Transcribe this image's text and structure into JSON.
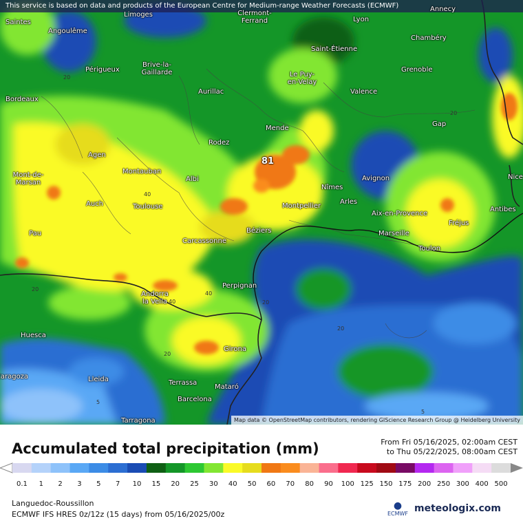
{
  "attribution_top": "This service is based on data and products of the European Centre for Medium-range Weather Forecasts (ECMWF)",
  "attribution_bottom": "Map data © OpenStreetMap contributors, rendering GIScience Research Group @ Heidelberg University",
  "title": "Accumulated total precipitation (mm)",
  "period": {
    "from": "From Fri 05/16/2025, 02:00am CEST",
    "to": "to Thu 05/22/2025, 08:00am CEST"
  },
  "region": "Languedoc-Roussillon",
  "model": "ECMWF IFS HRES 0z/12z (15 days) from 05/16/2025/00z",
  "logo": {
    "ecmwf": "ECMWF",
    "brand": "meteologix.com"
  },
  "scale": {
    "labels": [
      "0.1",
      "1",
      "2",
      "3",
      "5",
      "7",
      "10",
      "15",
      "20",
      "25",
      "30",
      "40",
      "50",
      "60",
      "70",
      "80",
      "90",
      "100",
      "125",
      "150",
      "175",
      "200",
      "250",
      "300",
      "400",
      "500"
    ],
    "colors": [
      "#d8d8f0",
      "#b4d2fa",
      "#8ec2fa",
      "#5aa8f5",
      "#3c8ce6",
      "#2c6ed2",
      "#1a4cb4",
      "#0f5f14",
      "#149628",
      "#2dc832",
      "#82e632",
      "#fafa28",
      "#e6dc1e",
      "#f07814",
      "#fa8c1e",
      "#fab496",
      "#fa6e8c",
      "#f02850",
      "#c80a1e",
      "#a00a14",
      "#780a64",
      "#b428f0",
      "#dc64f0",
      "#f0a0fa",
      "#f5dcf5",
      "#dcdcdc"
    ]
  },
  "cities": [
    {
      "name": "Saintes"
    },
    {
      "name": "Angoulême"
    },
    {
      "name": "Limoges"
    },
    {
      "name": "Clermont-Ferrand"
    },
    {
      "name": "Lyon"
    },
    {
      "name": "Annecy"
    },
    {
      "name": "Saint-Étienne"
    },
    {
      "name": "Chambéry"
    },
    {
      "name": "Périgueux"
    },
    {
      "name": "Brive-la-Gaillarde"
    },
    {
      "name": "Grenoble"
    },
    {
      "name": "Le Puy-en-Velay"
    },
    {
      "name": "Bordeaux"
    },
    {
      "name": "Aurillac"
    },
    {
      "name": "Valence"
    },
    {
      "name": "Mende"
    },
    {
      "name": "Gap"
    },
    {
      "name": "Rodez"
    },
    {
      "name": "Agen"
    },
    {
      "name": "Montauban"
    },
    {
      "name": "Mont-de-Marsan"
    },
    {
      "name": "Albi"
    },
    {
      "name": "Nîmes"
    },
    {
      "name": "Avignon"
    },
    {
      "name": "Auch"
    },
    {
      "name": "Toulouse"
    },
    {
      "name": "Arles"
    },
    {
      "name": "Montpellier"
    },
    {
      "name": "Aix-en-Provence"
    },
    {
      "name": "Nice"
    },
    {
      "name": "Antibes"
    },
    {
      "name": "Fréjus"
    },
    {
      "name": "Pau"
    },
    {
      "name": "Carcassonne"
    },
    {
      "name": "Béziers"
    },
    {
      "name": "Marseille"
    },
    {
      "name": "Toulon"
    },
    {
      "name": "Perpignan"
    },
    {
      "name": "Andorra la Vella"
    },
    {
      "name": "Huesca"
    },
    {
      "name": "Girona"
    },
    {
      "name": "Lleida"
    },
    {
      "name": "Terrassa"
    },
    {
      "name": "Mataró"
    },
    {
      "name": "Barcelona"
    },
    {
      "name": "Tarragona"
    },
    {
      "name": "Zaragoza"
    }
  ],
  "isolines": [
    "20",
    "20",
    "40",
    "40",
    "20",
    "20",
    "20",
    "40",
    "20",
    "5",
    "5"
  ],
  "max_marker": "81"
}
